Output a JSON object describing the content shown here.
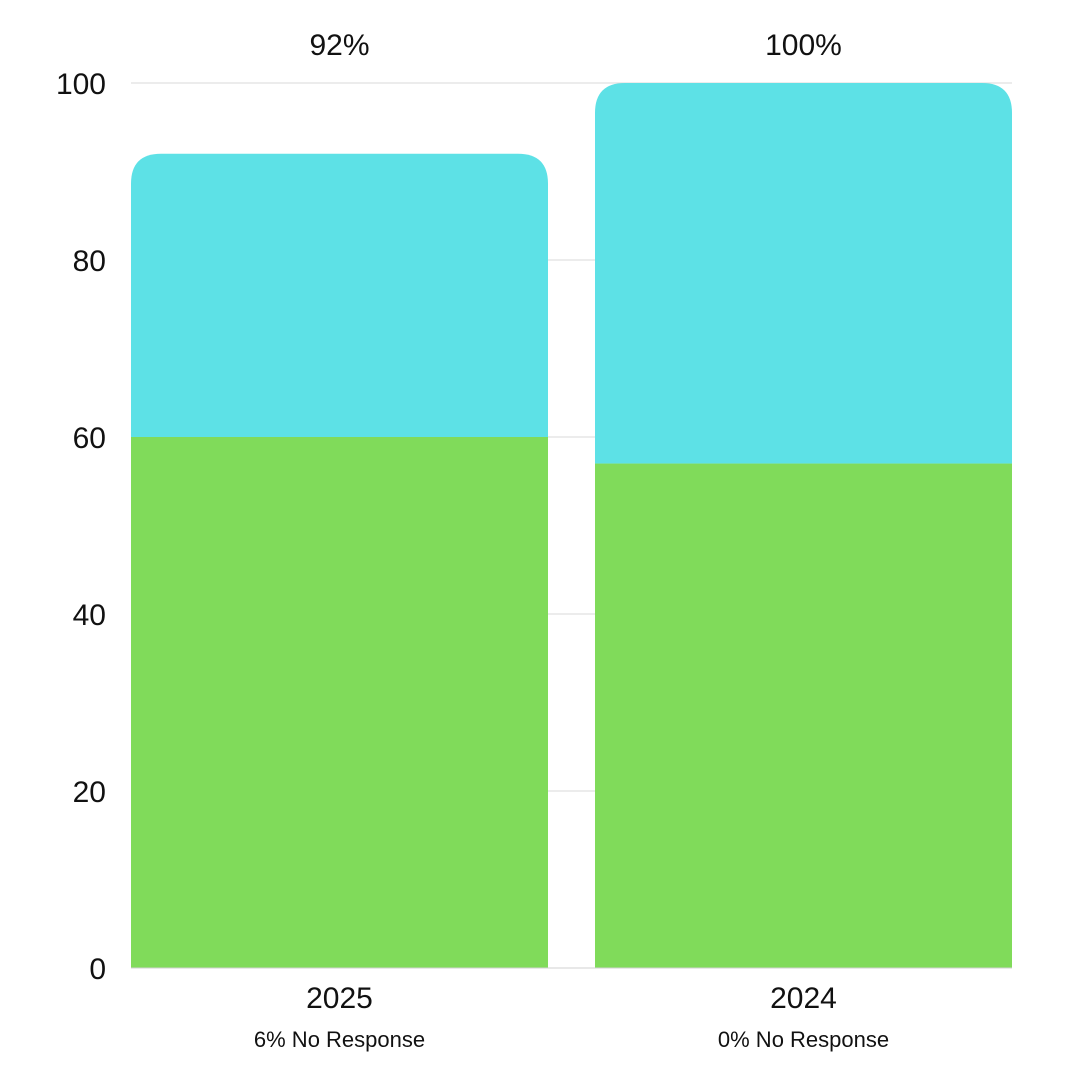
{
  "chart_data": {
    "type": "bar",
    "stacked": true,
    "categories": [
      "2025",
      "2024"
    ],
    "series": [
      {
        "values": [
          60,
          57
        ],
        "color": "#80DB5A"
      },
      {
        "values": [
          32,
          43
        ],
        "color": "#5DE1E6"
      }
    ],
    "totals_labels": [
      "92%",
      "100%"
    ],
    "category_sublabels": [
      "6% No Response",
      "0% No Response"
    ],
    "yticks": [
      0,
      20,
      40,
      60,
      80,
      100
    ],
    "ylim": [
      0,
      100
    ],
    "grid": true,
    "legend": "none"
  }
}
